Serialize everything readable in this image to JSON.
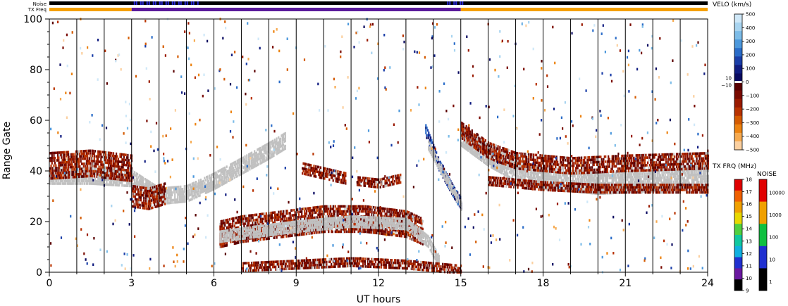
{
  "chart_data": {
    "type": "heatmap",
    "title": "",
    "xlabel": "UT hours",
    "ylabel": "Range Gate",
    "xlim": [
      0,
      24
    ],
    "ylim": [
      0,
      100
    ],
    "x_ticks": [
      0,
      3,
      6,
      9,
      12,
      15,
      18,
      21,
      24
    ],
    "y_ticks": [
      0,
      20,
      40,
      60,
      80,
      100
    ],
    "hour_gridlines": [
      1,
      2,
      3,
      4,
      5,
      6,
      7,
      8,
      9,
      10,
      11,
      12,
      13,
      14,
      15,
      16,
      17,
      18,
      19,
      20,
      21,
      22,
      23
    ],
    "top_strips": {
      "noise_label": "Noise",
      "txfreq_label": "TX Freq",
      "txfreq_segments": [
        {
          "start": 0,
          "end": 3.0,
          "color": "#f5a000"
        },
        {
          "start": 3.0,
          "end": 15.0,
          "color": "#5a1a9a"
        },
        {
          "start": 15.0,
          "end": 24,
          "color": "#f5a000"
        }
      ],
      "noise_color": "#000000",
      "noise_highlight_color": "#2a2ad8",
      "noise_highlights": [
        [
          3.0,
          5.5
        ],
        [
          14.5,
          15.2
        ]
      ]
    },
    "velocity_colorbar": {
      "title": "VELO (km/s)",
      "labels": [
        "500",
        "400",
        "300",
        "200",
        "100",
        "0",
        "−100",
        "−200",
        "−300",
        "−400",
        "−500"
      ],
      "mid_labels": [
        "10",
        "−10"
      ],
      "colors_positive": [
        "#cfe8f8",
        "#a8d4f0",
        "#7cbce8",
        "#4c98dc",
        "#2a6cc8",
        "#1a3ea8",
        "#101c80",
        "#0a0a60"
      ],
      "colors_negative": [
        "#5a0000",
        "#7a0a00",
        "#9a1a00",
        "#b83200",
        "#d45a00",
        "#ec8210",
        "#f6aa50",
        "#fbd0a0"
      ]
    },
    "txfreq_colorbar": {
      "title": "TX FRQ (MHz)",
      "labels": [
        "18",
        "17",
        "16",
        "15",
        "14",
        "13",
        "12",
        "11",
        "10",
        "9"
      ],
      "colors": [
        "#e00000",
        "#f06000",
        "#f0a000",
        "#e8d800",
        "#50d040",
        "#10c8a0",
        "#10b0e0",
        "#2030d0",
        "#6a18a0",
        "#000000"
      ]
    },
    "noise_colorbar": {
      "title": "NOISE",
      "labels": [
        "10000",
        "1000",
        "100",
        "10",
        "1"
      ],
      "colors": [
        "#e00000",
        "#f0a000",
        "#10c040",
        "#2030d0",
        "#000000"
      ]
    },
    "ground_scatter_color": "#c0c0c0",
    "bands": [
      {
        "name": "ground-scatter-morning",
        "kind": "ground",
        "points": [
          [
            0,
            38
          ],
          [
            1.5,
            38
          ],
          [
            3,
            37
          ],
          [
            4,
            30
          ],
          [
            5,
            31
          ],
          [
            6,
            36
          ],
          [
            7,
            42
          ],
          [
            8,
            48
          ],
          [
            8.6,
            52
          ]
        ],
        "width": 6
      },
      {
        "name": "negative-early",
        "kind": "neg",
        "points": [
          [
            0,
            42
          ],
          [
            1.5,
            43
          ],
          [
            3,
            41
          ]
        ],
        "width": 10
      },
      {
        "name": "negative-3to4",
        "kind": "neg",
        "points": [
          [
            3,
            30
          ],
          [
            3.6,
            29
          ],
          [
            4.2,
            31
          ]
        ],
        "width": 8
      },
      {
        "name": "negative-band-20",
        "kind": "neg",
        "points": [
          [
            6.2,
            15
          ],
          [
            7,
            17
          ],
          [
            8.5,
            19
          ],
          [
            10,
            21
          ],
          [
            11.5,
            21
          ],
          [
            13,
            19
          ],
          [
            13.6,
            16
          ]
        ],
        "width": 10
      },
      {
        "name": "ground-band-20",
        "kind": "ground",
        "points": [
          [
            6.2,
            14
          ],
          [
            7.5,
            16
          ],
          [
            9,
            18
          ],
          [
            11,
            20
          ],
          [
            13,
            19
          ],
          [
            13.8,
            12
          ],
          [
            14.2,
            4
          ]
        ],
        "width": 4
      },
      {
        "name": "negative-10to11",
        "kind": "neg",
        "points": [
          [
            9.2,
            41
          ],
          [
            10,
            39
          ],
          [
            10.8,
            37
          ]
        ],
        "width": 4
      },
      {
        "name": "negative-11to13",
        "kind": "neg",
        "points": [
          [
            11.2,
            36
          ],
          [
            12,
            35
          ],
          [
            12.8,
            37
          ]
        ],
        "width": 3
      },
      {
        "name": "positive-descent",
        "kind": "pos",
        "points": [
          [
            13.7,
            56
          ],
          [
            14.2,
            42
          ],
          [
            14.7,
            32
          ],
          [
            15,
            27
          ]
        ],
        "width": 4
      },
      {
        "name": "ground-descent",
        "kind": "ground",
        "points": [
          [
            13.8,
            50
          ],
          [
            14.4,
            38
          ],
          [
            15,
            26
          ]
        ],
        "width": 3
      },
      {
        "name": "ground-afternoon",
        "kind": "ground",
        "points": [
          [
            15,
            54
          ],
          [
            16,
            46
          ],
          [
            17,
            40
          ],
          [
            18,
            37
          ],
          [
            20,
            35
          ],
          [
            22,
            36
          ],
          [
            24,
            38
          ]
        ],
        "width": 8
      },
      {
        "name": "negative-afternoon",
        "kind": "neg",
        "points": [
          [
            15,
            56
          ],
          [
            16,
            48
          ],
          [
            17,
            44
          ],
          [
            19,
            42
          ],
          [
            21,
            43
          ],
          [
            24,
            44
          ]
        ],
        "width": 6
      },
      {
        "name": "negative-afternoon-low",
        "kind": "neg",
        "points": [
          [
            16,
            36
          ],
          [
            18,
            34
          ],
          [
            20,
            33
          ],
          [
            22,
            33
          ],
          [
            24,
            33
          ]
        ],
        "width": 3
      },
      {
        "name": "bottom-band",
        "kind": "neg",
        "points": [
          [
            7,
            2
          ],
          [
            9,
            3
          ],
          [
            11,
            4
          ],
          [
            13,
            3
          ],
          [
            15,
            1
          ]
        ],
        "width": 3
      }
    ]
  }
}
